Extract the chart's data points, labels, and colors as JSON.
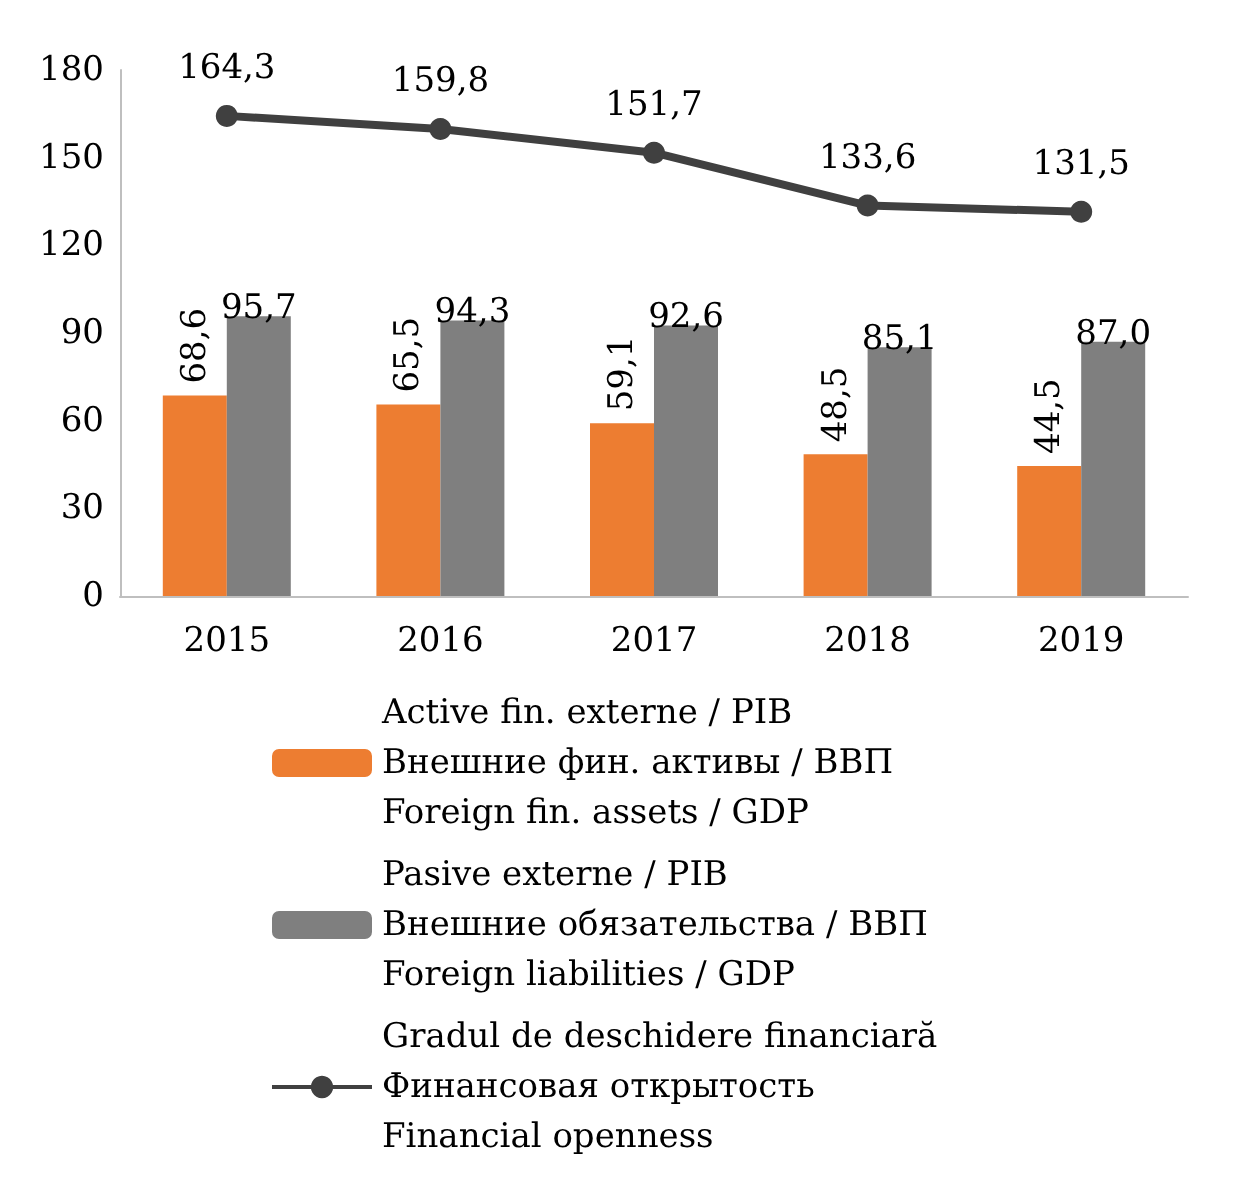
{
  "chart_data": {
    "type": "bar",
    "categories": [
      "2015",
      "2016",
      "2017",
      "2018",
      "2019"
    ],
    "series": [
      {
        "name": "Active fin. externe / PIB\nВнешние фин. активы / ВВП\nForeign fin. assets / GDP",
        "color": "#ed7d31",
        "values": [
          68.6,
          65.5,
          59.1,
          48.5,
          44.5
        ],
        "value_labels": [
          "68,6",
          "65,5",
          "59,1",
          "48,5",
          "44,5"
        ]
      },
      {
        "name": "Pasive externe / PIB\nВнешние обязательства / ВВП\nForeign liabilities / GDP",
        "color": "#7f7f7f",
        "values": [
          95.7,
          94.3,
          92.6,
          85.1,
          87.0
        ],
        "value_labels": [
          "95,7",
          "94,3",
          "92,6",
          "85,1",
          "87,0"
        ]
      },
      {
        "name": "Gradul de deschidere financiară\nФинансовая открытость\nFinancial openness",
        "type": "line",
        "color": "#404040",
        "marker": "circle",
        "values": [
          164.3,
          159.8,
          151.7,
          133.6,
          131.5
        ],
        "value_labels": [
          "164,3",
          "159,8",
          "151,7",
          "133,6",
          "131,5"
        ]
      }
    ],
    "ylim": [
      0,
      180
    ],
    "yticks": [
      0,
      30,
      60,
      90,
      120,
      150,
      180
    ],
    "grid": false,
    "legend": "bottom left"
  }
}
